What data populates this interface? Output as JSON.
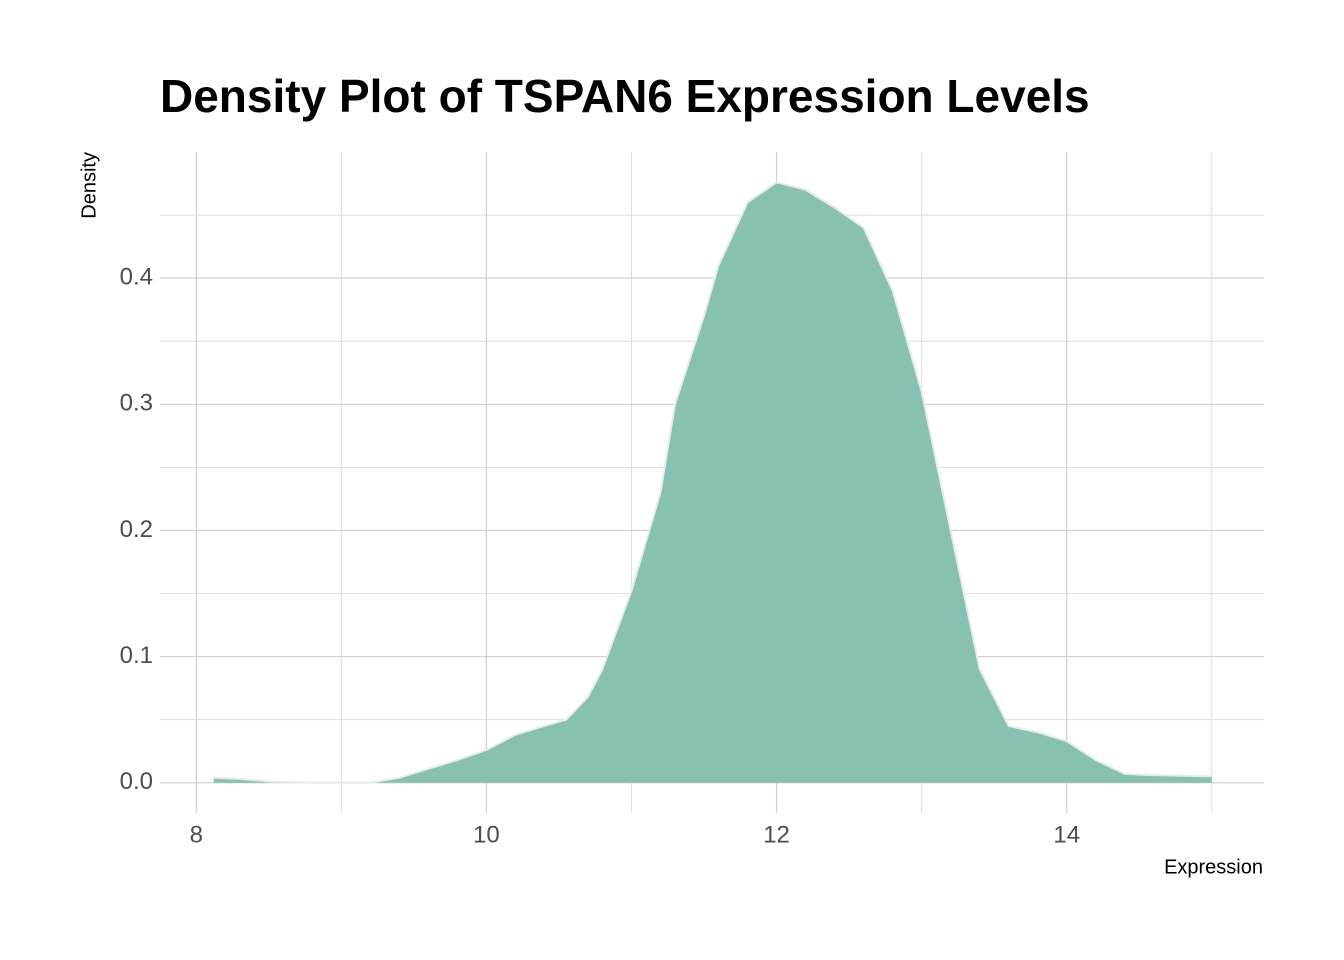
{
  "chart_data": {
    "type": "area",
    "title": "Density Plot of TSPAN6 Expression Levels",
    "x_label": "Expression",
    "y_label": "Density",
    "x": [
      8.12,
      8.3,
      8.5,
      8.8,
      9.2,
      9.4,
      9.6,
      9.8,
      10.0,
      10.2,
      10.4,
      10.55,
      10.7,
      10.8,
      11.0,
      11.2,
      11.3,
      11.5,
      11.6,
      11.8,
      12.0,
      12.2,
      12.4,
      12.6,
      12.8,
      13.0,
      13.2,
      13.4,
      13.6,
      13.8,
      14.0,
      14.2,
      14.4,
      14.6,
      15.0
    ],
    "y": [
      0.004,
      0.003,
      0.001,
      0.0,
      0.0,
      0.004,
      0.011,
      0.018,
      0.026,
      0.038,
      0.045,
      0.05,
      0.068,
      0.09,
      0.152,
      0.23,
      0.3,
      0.37,
      0.41,
      0.46,
      0.476,
      0.47,
      0.456,
      0.44,
      0.39,
      0.31,
      0.2,
      0.09,
      0.045,
      0.04,
      0.033,
      0.018,
      0.007,
      0.006,
      0.005
    ],
    "color": "#88c0b1",
    "xlim": [
      7.75,
      15.36
    ],
    "ylim": [
      -0.024,
      0.5
    ],
    "xticks": [
      8,
      10,
      12,
      14
    ],
    "yticks": [
      {
        "value": 0,
        "label": "0.0"
      },
      0.1,
      0.2,
      0.3,
      0.4
    ],
    "xminorticks": [
      9,
      11,
      13,
      15
    ],
    "yminorticks": [
      0.05,
      0.15,
      0.25,
      0.35,
      0.45
    ],
    "grid": true
  }
}
